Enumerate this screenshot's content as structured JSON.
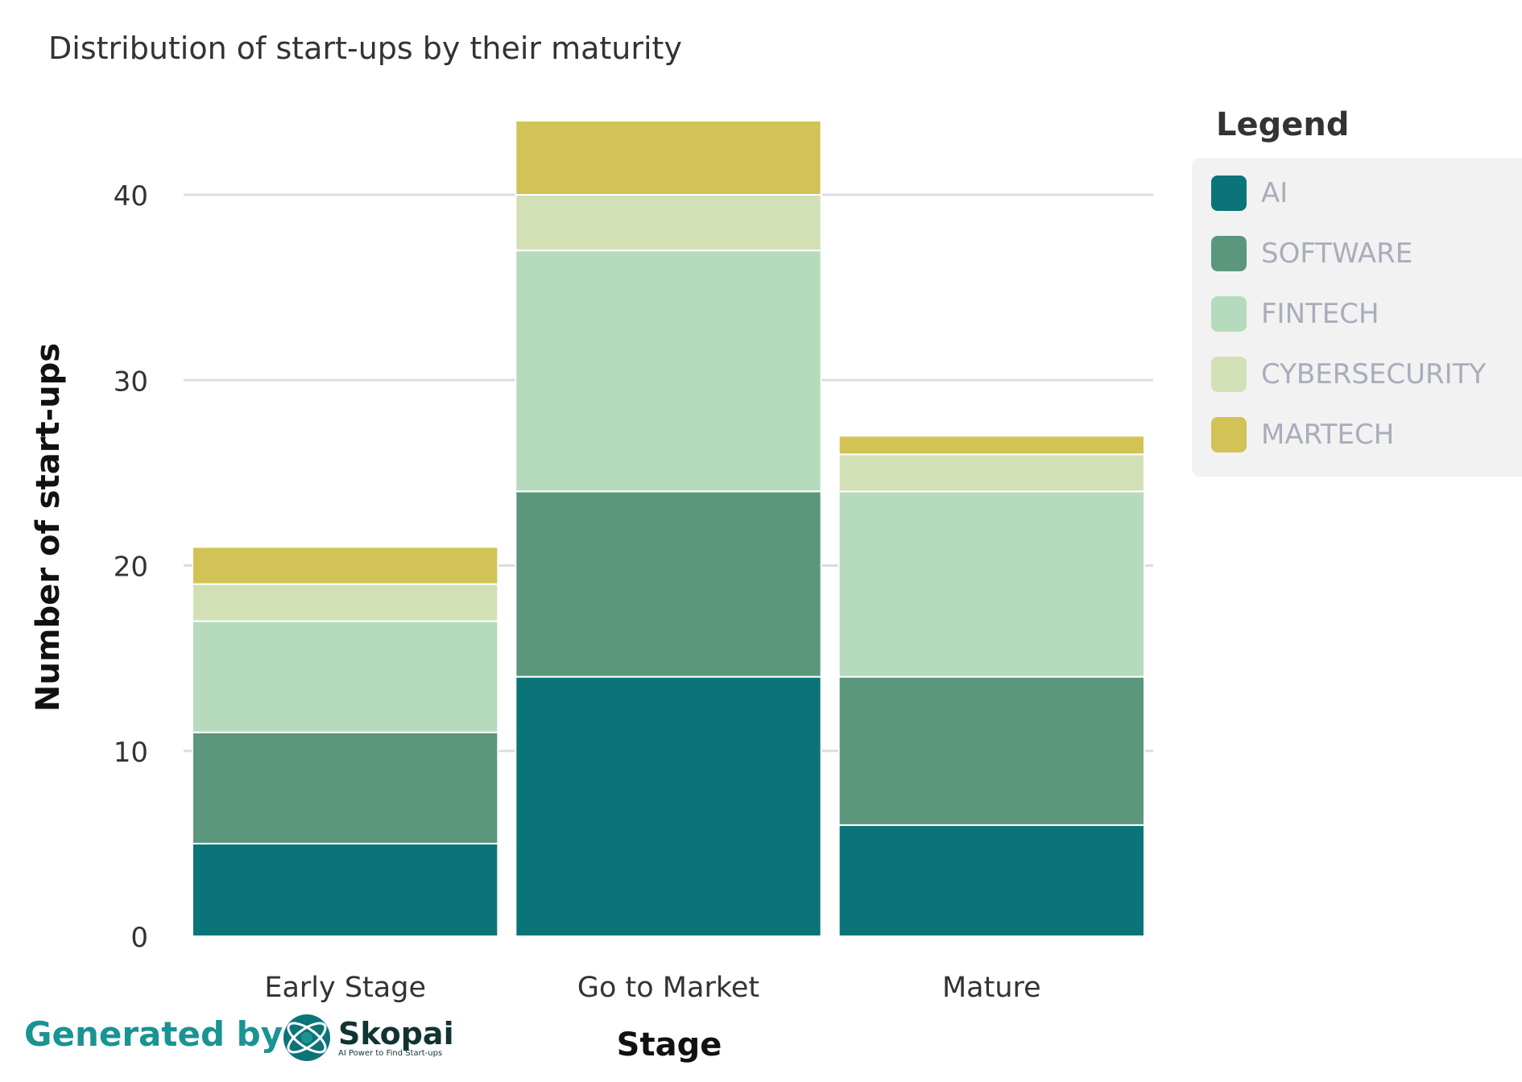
{
  "chart_data": {
    "type": "bar",
    "stacked": true,
    "title": "Distribution of start-ups by their maturity",
    "xlabel": "Stage",
    "ylabel": "Number of start-ups",
    "categories": [
      "Early Stage",
      "Go to Market",
      "Mature"
    ],
    "ylim": [
      0,
      44
    ],
    "yticks": [
      0,
      10,
      20,
      30,
      40
    ],
    "grid": true,
    "legend": {
      "title": "Legend",
      "placement": "right"
    },
    "series": [
      {
        "name": "AI",
        "color": "#0b7479",
        "values": [
          5,
          14,
          6
        ]
      },
      {
        "name": "SOFTWARE",
        "color": "#5a977d",
        "values": [
          6,
          10,
          8
        ]
      },
      {
        "name": "FINTECH",
        "color": "#b5dbbc",
        "values": [
          6,
          13,
          10
        ]
      },
      {
        "name": "CYBERSECURITY",
        "color": "#d2e1b5",
        "values": [
          2,
          3,
          2
        ]
      },
      {
        "name": "MARTECH",
        "color": "#d1c355",
        "values": [
          2,
          4,
          1
        ]
      }
    ]
  },
  "footer": {
    "generated_by": "Generated by",
    "logo_name": "Skopai",
    "logo_tagline": "AI Power to Find Start-ups",
    "logo_icon": "skopai-logo-icon"
  }
}
